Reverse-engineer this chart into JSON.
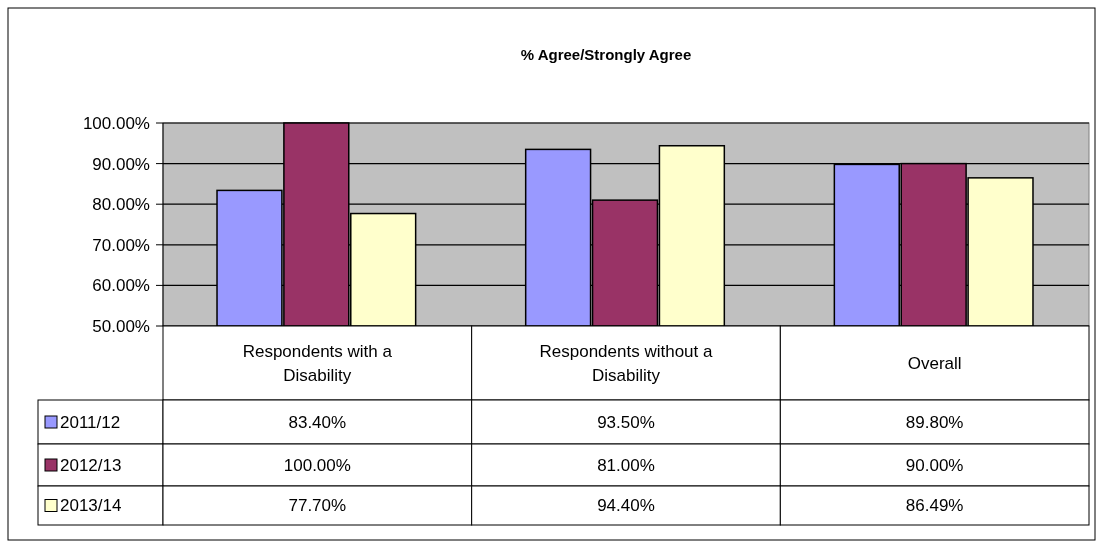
{
  "chart_data": {
    "type": "bar",
    "title": "% Agree/Strongly Agree",
    "categories": [
      "Respondents with a Disability",
      "Respondents without a Disability",
      "Overall"
    ],
    "series": [
      {
        "name": "2011/12",
        "color": "#9999ff",
        "values": [
          83.4,
          93.5,
          89.8
        ],
        "value_labels": [
          "83.40%",
          "93.50%",
          "89.80%"
        ]
      },
      {
        "name": "2012/13",
        "color": "#993366",
        "values": [
          100,
          81,
          90
        ],
        "value_labels": [
          "100.00%",
          "81.00%",
          "90.00%"
        ]
      },
      {
        "name": "2013/14",
        "color": "#ffffcc",
        "values": [
          77.7,
          94.4,
          86.49
        ],
        "value_labels": [
          "77.70%",
          "94.40%",
          "86.49%"
        ]
      }
    ],
    "ylim": [
      50,
      100
    ],
    "yticks": [
      {
        "value": 50,
        "label": "50.00%"
      },
      {
        "value": 60,
        "label": "60.00%"
      },
      {
        "value": 70,
        "label": "70.00%"
      },
      {
        "value": 80,
        "label": "80.00%"
      },
      {
        "value": 90,
        "label": "90.00%"
      },
      {
        "value": 100,
        "label": "100.00%"
      }
    ],
    "grid": "y",
    "legend": "bottom"
  }
}
